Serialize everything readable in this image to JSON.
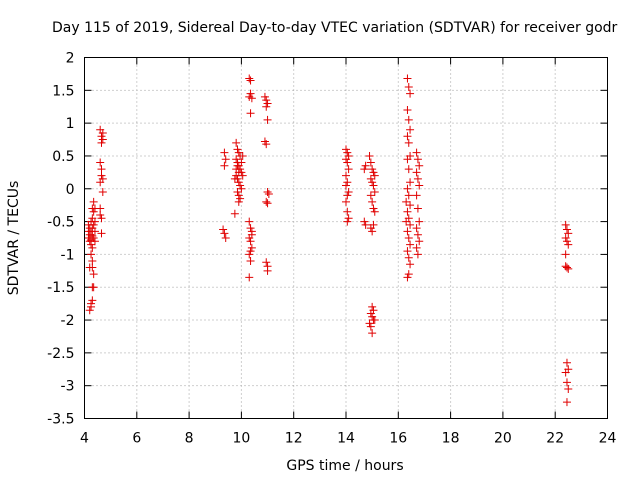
{
  "chart_data": {
    "type": "scatter",
    "title": "Day 115 of 2019, Sidereal Day-to-day VTEC variation (SDTVAR) for receiver godr",
    "xlabel": "GPS time / hours",
    "ylabel": "SDTVAR / TECUs",
    "xlim": [
      4,
      24
    ],
    "ylim": [
      -3.5,
      2
    ],
    "xticks": [
      4,
      6,
      8,
      10,
      12,
      14,
      16,
      18,
      20,
      22,
      24
    ],
    "yticks": [
      -3.5,
      -3,
      -2.5,
      -2,
      -1.5,
      -1,
      -0.5,
      0,
      0.5,
      1,
      1.5,
      2
    ],
    "xtick_labels": [
      "4",
      "6",
      "8",
      "10",
      "12",
      "14",
      "16",
      "18",
      "20",
      "22",
      "24"
    ],
    "ytick_labels": [
      "-3.5",
      "-3",
      "-2.5",
      "-2",
      "-1.5",
      "-1",
      "-0.5",
      "0",
      "0.5",
      "1",
      "1.5",
      "2"
    ],
    "grid": true,
    "marker": "+",
    "series": [
      {
        "name": "SDTVAR",
        "color": "#e00000",
        "points": [
          [
            4.15,
            -0.55
          ],
          [
            4.15,
            -0.65
          ],
          [
            4.15,
            -0.75
          ],
          [
            4.2,
            -0.6
          ],
          [
            4.2,
            -0.7
          ],
          [
            4.2,
            -0.8
          ],
          [
            4.25,
            -0.5
          ],
          [
            4.25,
            -0.65
          ],
          [
            4.25,
            -0.78
          ],
          [
            4.25,
            -0.85
          ],
          [
            4.3,
            -0.3
          ],
          [
            4.3,
            -0.45
          ],
          [
            4.3,
            -0.6
          ],
          [
            4.3,
            -0.72
          ],
          [
            4.3,
            -0.9
          ],
          [
            4.35,
            -0.2
          ],
          [
            4.35,
            -0.35
          ],
          [
            4.35,
            -0.55
          ],
          [
            4.35,
            -0.75
          ],
          [
            4.4,
            -0.3
          ],
          [
            4.4,
            -0.5
          ],
          [
            4.4,
            -0.65
          ],
          [
            4.4,
            -0.8
          ],
          [
            4.25,
            -1.0
          ],
          [
            4.3,
            -1.1
          ],
          [
            4.3,
            -1.2
          ],
          [
            4.35,
            -1.3
          ],
          [
            4.3,
            -1.5
          ],
          [
            4.25,
            -1.75
          ],
          [
            4.2,
            -1.85
          ],
          [
            4.25,
            -1.8
          ],
          [
            4.3,
            -1.7
          ],
          [
            4.35,
            -1.5
          ],
          [
            4.2,
            -1.2
          ],
          [
            4.6,
            0.9
          ],
          [
            4.65,
            0.8
          ],
          [
            4.65,
            0.7
          ],
          [
            4.7,
            0.75
          ],
          [
            4.7,
            0.85
          ],
          [
            4.6,
            0.4
          ],
          [
            4.65,
            0.3
          ],
          [
            4.65,
            0.2
          ],
          [
            4.7,
            0.15
          ],
          [
            4.6,
            0.1
          ],
          [
            4.7,
            -0.05
          ],
          [
            4.6,
            -0.3
          ],
          [
            4.65,
            -0.45
          ],
          [
            4.6,
            -0.4
          ],
          [
            4.65,
            -0.68
          ],
          [
            9.35,
            0.55
          ],
          [
            9.4,
            0.45
          ],
          [
            9.35,
            0.35
          ],
          [
            9.3,
            -0.62
          ],
          [
            9.35,
            -0.68
          ],
          [
            9.4,
            -0.75
          ],
          [
            9.8,
            0.7
          ],
          [
            9.85,
            0.6
          ],
          [
            9.9,
            0.55
          ],
          [
            9.95,
            0.5
          ],
          [
            9.8,
            0.45
          ],
          [
            9.85,
            0.4
          ],
          [
            9.9,
            0.35
          ],
          [
            9.95,
            0.3
          ],
          [
            10.0,
            0.25
          ],
          [
            9.8,
            0.2
          ],
          [
            9.85,
            0.15
          ],
          [
            9.9,
            0.1
          ],
          [
            9.95,
            0.05
          ],
          [
            10.0,
            0.0
          ],
          [
            9.85,
            -0.05
          ],
          [
            9.9,
            -0.1
          ],
          [
            9.95,
            -0.15
          ],
          [
            9.8,
            0.3
          ],
          [
            9.9,
            0.25
          ],
          [
            10.0,
            0.4
          ],
          [
            10.05,
            0.5
          ],
          [
            9.75,
            0.15
          ],
          [
            9.85,
            0.35
          ],
          [
            10.05,
            0.2
          ],
          [
            9.9,
            -0.2
          ],
          [
            9.75,
            -0.38
          ],
          [
            10.3,
            1.68
          ],
          [
            10.35,
            1.65
          ],
          [
            10.35,
            1.45
          ],
          [
            10.3,
            1.4
          ],
          [
            10.4,
            1.38
          ],
          [
            10.35,
            1.15
          ],
          [
            10.3,
            -0.5
          ],
          [
            10.35,
            -0.6
          ],
          [
            10.4,
            -0.7
          ],
          [
            10.3,
            -0.75
          ],
          [
            10.35,
            -0.8
          ],
          [
            10.4,
            -0.9
          ],
          [
            10.3,
            -1.0
          ],
          [
            10.35,
            -1.1
          ],
          [
            10.4,
            -0.65
          ],
          [
            10.3,
            -1.35
          ],
          [
            10.35,
            -0.95
          ],
          [
            10.9,
            1.4
          ],
          [
            10.95,
            1.35
          ],
          [
            11.0,
            1.3
          ],
          [
            10.95,
            1.25
          ],
          [
            11.0,
            1.05
          ],
          [
            10.9,
            0.72
          ],
          [
            10.95,
            0.68
          ],
          [
            11.0,
            -0.05
          ],
          [
            11.05,
            -0.08
          ],
          [
            10.95,
            -0.2
          ],
          [
            11.0,
            -0.22
          ],
          [
            10.95,
            -1.12
          ],
          [
            11.0,
            -1.18
          ],
          [
            11.0,
            -1.25
          ],
          [
            14.0,
            0.6
          ],
          [
            14.05,
            0.55
          ],
          [
            14.1,
            0.5
          ],
          [
            14.0,
            0.45
          ],
          [
            14.05,
            0.4
          ],
          [
            14.1,
            0.3
          ],
          [
            14.0,
            0.2
          ],
          [
            14.05,
            0.1
          ],
          [
            14.0,
            0.05
          ],
          [
            14.1,
            -0.05
          ],
          [
            14.05,
            -0.1
          ],
          [
            14.0,
            -0.2
          ],
          [
            14.05,
            -0.35
          ],
          [
            14.1,
            -0.45
          ],
          [
            14.05,
            -0.5
          ],
          [
            14.7,
            0.3
          ],
          [
            14.75,
            0.35
          ],
          [
            14.7,
            -0.5
          ],
          [
            14.75,
            -0.55
          ],
          [
            14.9,
            0.5
          ],
          [
            14.95,
            0.4
          ],
          [
            15.0,
            0.3
          ],
          [
            15.05,
            0.25
          ],
          [
            15.1,
            0.2
          ],
          [
            14.95,
            0.15
          ],
          [
            15.0,
            0.1
          ],
          [
            15.05,
            0.05
          ],
          [
            15.1,
            -0.05
          ],
          [
            14.95,
            -0.1
          ],
          [
            15.0,
            -0.2
          ],
          [
            15.05,
            -0.3
          ],
          [
            15.1,
            -0.35
          ],
          [
            14.95,
            -0.6
          ],
          [
            15.0,
            -0.65
          ],
          [
            15.05,
            -0.55
          ],
          [
            15.0,
            -1.8
          ],
          [
            15.05,
            -1.85
          ],
          [
            14.95,
            -1.9
          ],
          [
            15.0,
            -1.95
          ],
          [
            15.05,
            -2.0
          ],
          [
            14.9,
            -2.05
          ],
          [
            14.95,
            -2.1
          ],
          [
            15.0,
            -2.2
          ],
          [
            15.1,
            -2.0
          ],
          [
            16.35,
            1.68
          ],
          [
            16.4,
            1.55
          ],
          [
            16.45,
            1.45
          ],
          [
            16.35,
            1.2
          ],
          [
            16.4,
            1.05
          ],
          [
            16.45,
            0.9
          ],
          [
            16.35,
            0.8
          ],
          [
            16.4,
            0.7
          ],
          [
            16.45,
            0.5
          ],
          [
            16.35,
            0.45
          ],
          [
            16.4,
            0.3
          ],
          [
            16.45,
            0.1
          ],
          [
            16.35,
            0.0
          ],
          [
            16.4,
            -0.1
          ],
          [
            16.45,
            -0.25
          ],
          [
            16.35,
            -0.35
          ],
          [
            16.4,
            -0.45
          ],
          [
            16.45,
            -0.55
          ],
          [
            16.35,
            -0.65
          ],
          [
            16.4,
            -0.75
          ],
          [
            16.45,
            -0.85
          ],
          [
            16.35,
            -0.95
          ],
          [
            16.4,
            -1.05
          ],
          [
            16.45,
            -1.15
          ],
          [
            16.35,
            -1.35
          ],
          [
            16.4,
            -1.3
          ],
          [
            16.3,
            -0.5
          ],
          [
            16.3,
            -0.2
          ],
          [
            16.7,
            0.55
          ],
          [
            16.75,
            0.45
          ],
          [
            16.8,
            0.35
          ],
          [
            16.7,
            0.25
          ],
          [
            16.75,
            0.15
          ],
          [
            16.8,
            0.05
          ],
          [
            16.7,
            -0.1
          ],
          [
            16.75,
            -0.3
          ],
          [
            16.8,
            -0.5
          ],
          [
            16.7,
            -0.6
          ],
          [
            16.75,
            -0.7
          ],
          [
            16.8,
            -0.8
          ],
          [
            16.7,
            -0.9
          ],
          [
            16.75,
            -1.0
          ],
          [
            22.4,
            -0.55
          ],
          [
            22.45,
            -0.62
          ],
          [
            22.5,
            -0.68
          ],
          [
            22.4,
            -0.75
          ],
          [
            22.45,
            -0.8
          ],
          [
            22.5,
            -0.85
          ],
          [
            22.4,
            -1.0
          ],
          [
            22.45,
            -1.2
          ],
          [
            22.5,
            -1.22
          ],
          [
            22.4,
            -1.18
          ],
          [
            22.45,
            -2.65
          ],
          [
            22.5,
            -2.75
          ],
          [
            22.4,
            -2.8
          ],
          [
            22.45,
            -2.95
          ],
          [
            22.5,
            -3.05
          ],
          [
            22.45,
            -3.25
          ]
        ]
      }
    ]
  }
}
